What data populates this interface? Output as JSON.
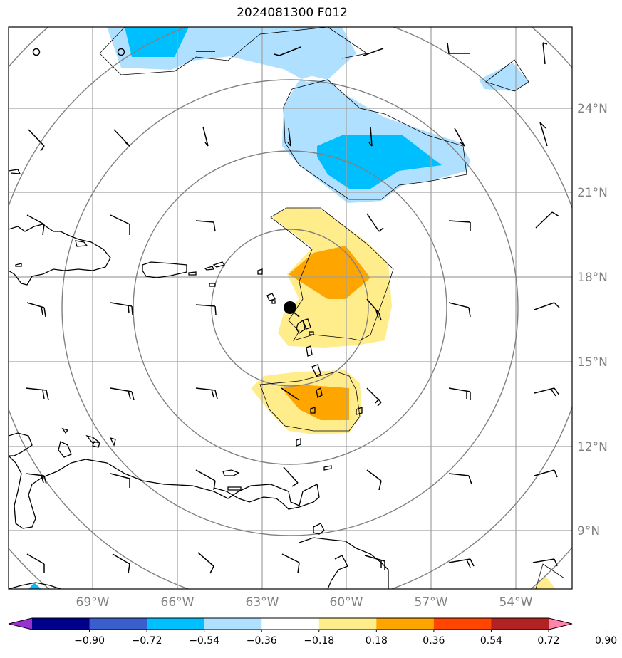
{
  "title": "2024081300 F012",
  "map": {
    "lon_ticks": [
      "69°W",
      "66°W",
      "63°W",
      "60°W",
      "57°W",
      "54°W"
    ],
    "lat_ticks": [
      "24°N",
      "21°N",
      "18°N",
      "15°N",
      "12°N",
      "9°N"
    ],
    "grid": true,
    "range_rings": 5,
    "storm_center": {
      "lon": "62°W",
      "lat": "17°N"
    },
    "colors": {
      "light_blue": "#b0e0ff",
      "blue": "#00bfff",
      "light_yellow": "#ffec8b",
      "orange": "#ffa500",
      "grid": "#a0a0a0",
      "ring": "#808080"
    }
  },
  "colorbar": {
    "labels": [
      "−0.90",
      "−0.72",
      "−0.54",
      "−0.36",
      "−0.18",
      "0.18",
      "0.36",
      "0.54",
      "0.72",
      "0.90"
    ],
    "colors": [
      "#9932cc",
      "#00008b",
      "#3a5fcd",
      "#00bfff",
      "#b0e0ff",
      "#ffffff",
      "#ffec8b",
      "#ffa500",
      "#ff4500",
      "#b22222",
      "#ff85ad"
    ]
  }
}
